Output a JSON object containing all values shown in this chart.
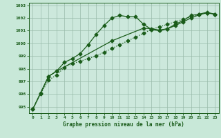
{
  "title": "Graphe pression niveau de la mer (hPa)",
  "background_color": "#c8e8d8",
  "plot_bg_color": "#cce8dc",
  "line_color": "#1a5c1a",
  "grid_color": "#99bbaa",
  "xlim": [
    -0.5,
    23.5
  ],
  "ylim": [
    994.5,
    1003.2
  ],
  "yticks": [
    995,
    996,
    997,
    998,
    999,
    1000,
    1001,
    1002,
    1003
  ],
  "xticks": [
    0,
    1,
    2,
    3,
    4,
    5,
    6,
    7,
    8,
    9,
    10,
    11,
    12,
    13,
    14,
    15,
    16,
    17,
    18,
    19,
    20,
    21,
    22,
    23
  ],
  "series_dotted_x": [
    0,
    1,
    2,
    3,
    4,
    5,
    6,
    7,
    8,
    9,
    10,
    11,
    12,
    13,
    14,
    15,
    16,
    17,
    18,
    19,
    20,
    21,
    22,
    23
  ],
  "series_dotted_y": [
    994.8,
    996.0,
    997.1,
    997.5,
    998.1,
    998.4,
    998.6,
    998.8,
    999.0,
    999.3,
    999.6,
    999.9,
    1000.2,
    1000.5,
    1000.8,
    1001.1,
    1001.3,
    1001.5,
    1001.7,
    1001.9,
    1002.1,
    1002.3,
    1002.4,
    1002.3
  ],
  "series_peak_x": [
    0,
    1,
    2,
    3,
    4,
    5,
    6,
    7,
    8,
    9,
    10,
    11,
    12,
    13,
    14,
    15,
    16,
    17,
    18,
    19,
    20,
    21,
    22,
    23
  ],
  "series_peak_y": [
    994.8,
    996.1,
    997.4,
    997.8,
    998.5,
    998.8,
    999.2,
    999.9,
    1000.7,
    1001.4,
    1002.0,
    1002.2,
    1002.1,
    1002.1,
    1001.5,
    1001.1,
    1001.0,
    1001.15,
    1001.5,
    1001.8,
    1002.2,
    1002.3,
    1002.45,
    1002.3
  ],
  "series_linear_x": [
    0,
    2,
    3,
    10,
    14,
    15,
    16,
    17,
    18,
    19,
    20,
    21,
    22,
    23
  ],
  "series_linear_y": [
    994.8,
    997.4,
    997.8,
    1000.2,
    1001.2,
    1001.15,
    1001.05,
    1001.15,
    1001.4,
    1001.7,
    1002.0,
    1002.25,
    1002.4,
    1002.3
  ],
  "marker": "D",
  "marker_size": 2.5,
  "linewidth": 0.9
}
